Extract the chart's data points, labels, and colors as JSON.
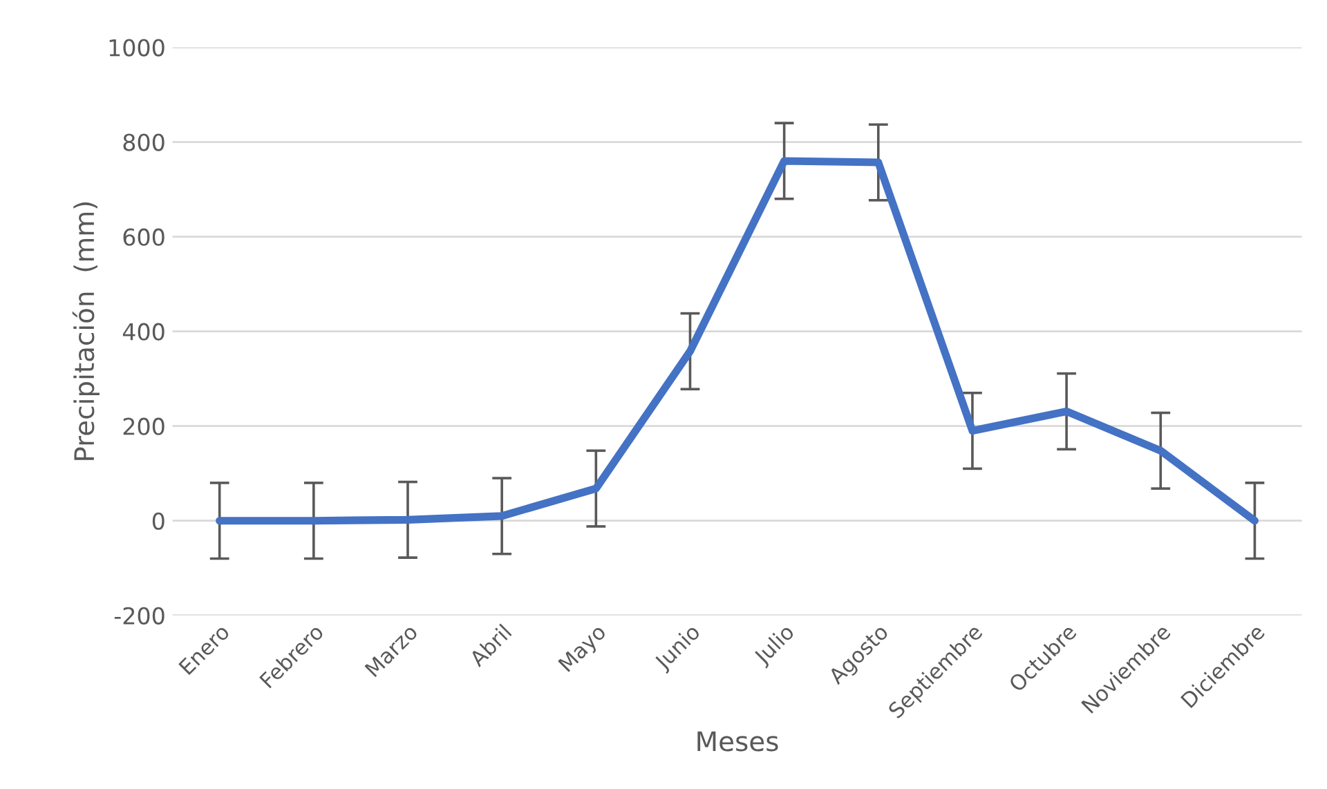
{
  "chart_data": {
    "type": "line",
    "xlabel": "Meses",
    "ylabel": "Precipitación  (mm)",
    "categories": [
      "Enero",
      "Febrero",
      "Marzo",
      "Abril",
      "Mayo",
      "Junio",
      "Julio",
      "Agosto",
      "Septiembre",
      "Octubre",
      "Noviembre",
      "Diciembre"
    ],
    "series": [
      {
        "color": "#4472c4",
        "values": [
          0,
          0,
          2,
          10,
          68,
          358,
          760,
          757,
          190,
          231,
          148,
          0
        ],
        "errors": [
          80,
          80,
          80,
          80,
          80,
          80,
          80,
          80,
          80,
          80,
          80,
          80
        ]
      }
    ],
    "ylim": [
      -200,
      1000
    ],
    "yticks": [
      -200,
      0,
      200,
      400,
      600,
      800,
      1000
    ],
    "grid": "y",
    "marker": "none",
    "line_style": "solid",
    "legend": false
  }
}
